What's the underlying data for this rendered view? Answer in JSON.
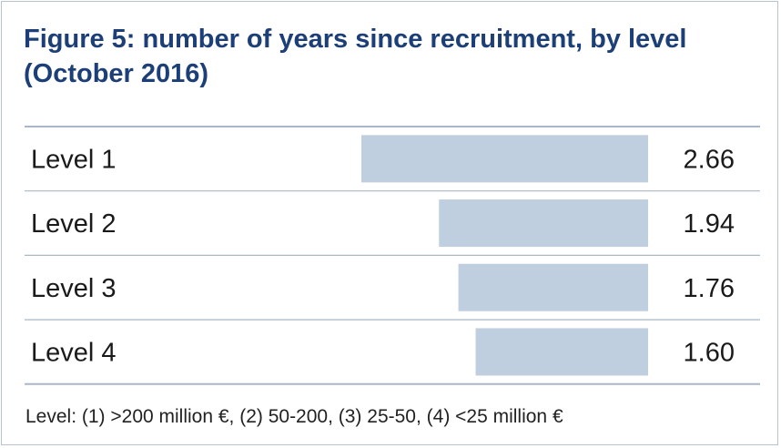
{
  "title": "Figure 5: number of years since recruitment, by level (October 2016)",
  "note": "Level: (1) >200 million €, (2) 50-200, (3) 25-50, (4) <25 million €",
  "colors": {
    "bar": "#bfcfe0",
    "rule": "#a9b7c6",
    "title": "#1d3f78"
  },
  "chart_data": {
    "type": "bar",
    "orientation": "horizontal",
    "categories": [
      "Level 1",
      "Level 2",
      "Level 3",
      "Level 4"
    ],
    "values": [
      2.66,
      1.94,
      1.76,
      1.6
    ],
    "value_labels": [
      "2.66",
      "1.94",
      "1.76",
      "1.60"
    ],
    "bar_direction": "right-to-left",
    "xlim": [
      0,
      2.66
    ],
    "grid": false
  }
}
